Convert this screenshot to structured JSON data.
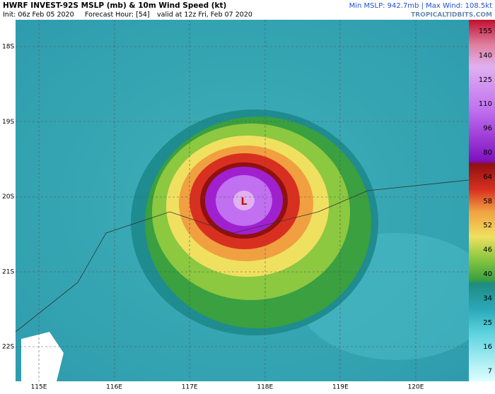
{
  "header": {
    "title": "HWRF INVEST-92S MSLP (mb) & 10m Wind Speed (kt)",
    "init": "Init: 06z Feb 05 2020",
    "forecast_hour": "Forecast Hour: [54]",
    "valid": "valid at 12z Fri, Feb 07 2020",
    "stats": "Min MSLP: 942.7mb | Max Wind: 108.5kt",
    "site": "TROPICALTIDBITS.COM"
  },
  "map": {
    "lat_labels": [
      "18S",
      "19S",
      "20S",
      "21S",
      "22S"
    ],
    "lon_labels": [
      "115E",
      "116E",
      "117E",
      "118E",
      "119E",
      "120E"
    ],
    "low_symbol": "L"
  },
  "colorbar": {
    "labels": [
      "155",
      "140",
      "125",
      "110",
      "96",
      "80",
      "64",
      "58",
      "52",
      "46",
      "40",
      "34",
      "25",
      "16",
      "7"
    ]
  }
}
